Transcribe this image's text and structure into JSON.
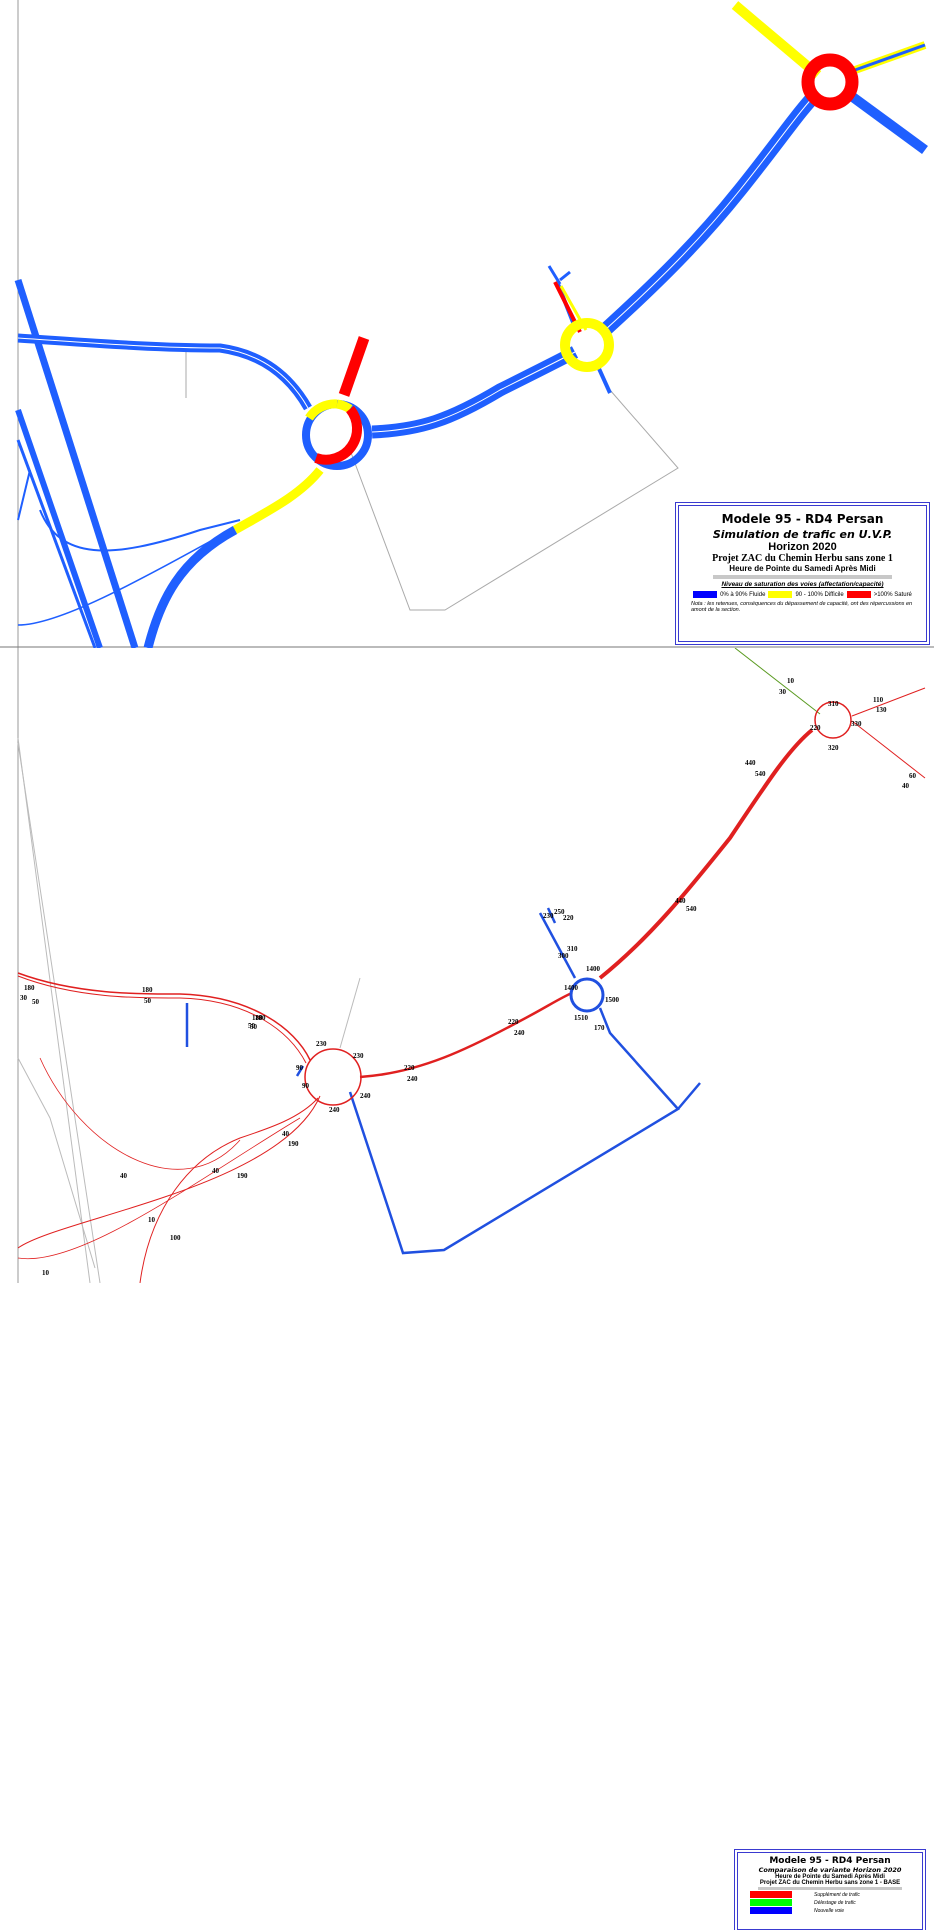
{
  "top_map": {
    "legend": {
      "title": "Modele 95 - RD4 Persan",
      "subtitle": "Simulation de trafic en U.V.P.",
      "horizon": "Horizon 2020",
      "project": "Projet ZAC du Chemin Herbu sans zone 1",
      "period": "Heure de Pointe du Samedi Après Midi",
      "saturation_heading": "Niveau de saturation des voies (affectation/capacité)",
      "levels": [
        {
          "label": "0% à 90% Fluide",
          "color": "#0000ff"
        },
        {
          "label": "90 - 100% Difficile",
          "color": "#ffff00"
        },
        {
          "label": ">100% Saturé",
          "color": "#ff0000"
        }
      ],
      "note": "Nota : les retenues, conséquences du dépassement de capacité, ont des répercussions en amont de la section."
    },
    "colors": {
      "fluid": "#1f5fff",
      "difficult": "#ffff00",
      "saturated": "#ff0000"
    }
  },
  "bottom_map": {
    "legend": {
      "title": "Modele 95 - RD4 Persan",
      "subtitle": "Comparaison de variante Horizon 2020",
      "period": "Heure de Pointe du Samedi Après Midi",
      "project": "Projet ZAC du Chemin Herbu sans zone 1 - BASE",
      "items": [
        {
          "label": "Supplément de trafic",
          "color": "#ff0000"
        },
        {
          "label": "Délestage de trafic",
          "color": "#00ff00"
        },
        {
          "label": "Nouvelle voie",
          "color": "#0000ff"
        }
      ]
    },
    "flow_labels": [
      "10",
      "30",
      "310",
      "110",
      "130",
      "330",
      "220",
      "320",
      "60",
      "40",
      "440",
      "540",
      "440",
      "540",
      "230",
      "250",
      "220",
      "310",
      "300",
      "1400",
      "1500",
      "1400",
      "1510",
      "170",
      "220",
      "240",
      "180",
      "180",
      "50",
      "30",
      "50",
      "180",
      "50",
      "180",
      "50",
      "230",
      "230",
      "90",
      "90",
      "240",
      "240",
      "220",
      "240",
      "40",
      "190",
      "40",
      "40",
      "190",
      "10",
      "100",
      "10"
    ]
  }
}
